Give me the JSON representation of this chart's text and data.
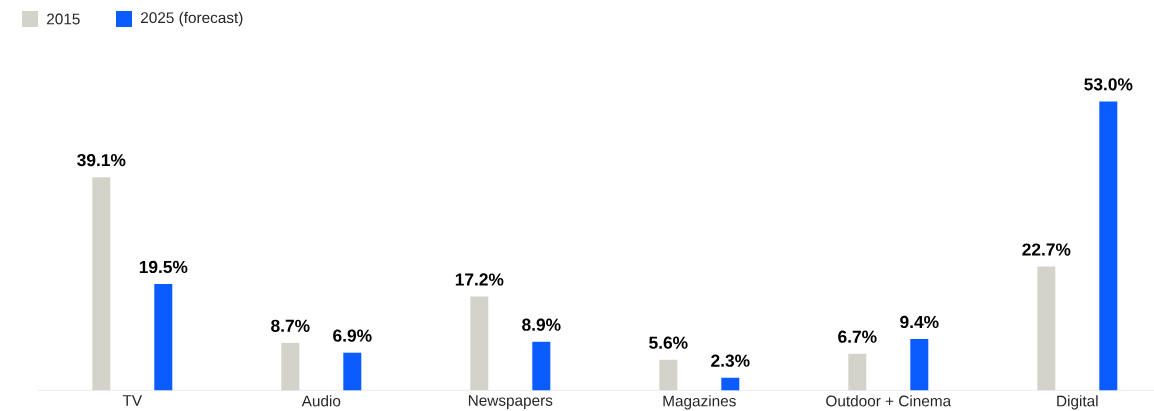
{
  "chart_data": {
    "type": "bar",
    "categories": [
      "TV",
      "Audio",
      "Newspapers",
      "Magazines",
      "Outdoor + Cinema",
      "Digital"
    ],
    "series": [
      {
        "name": "2015",
        "color": "#d4d3c9",
        "values": [
          39.1,
          8.7,
          17.2,
          5.6,
          6.7,
          22.7
        ],
        "value_labels": [
          "39.1%",
          "8.7%",
          "17.2%",
          "5.6%",
          "6.7%",
          "22.7%"
        ]
      },
      {
        "name": "2025 (forecast)",
        "color": "#0b5cff",
        "values": [
          19.5,
          6.9,
          8.9,
          2.3,
          9.4,
          53.0
        ],
        "value_labels": [
          "19.5%",
          "6.9%",
          "8.9%",
          "2.3%",
          "9.4%",
          "53.0%"
        ]
      }
    ],
    "legend": "top left"
  }
}
